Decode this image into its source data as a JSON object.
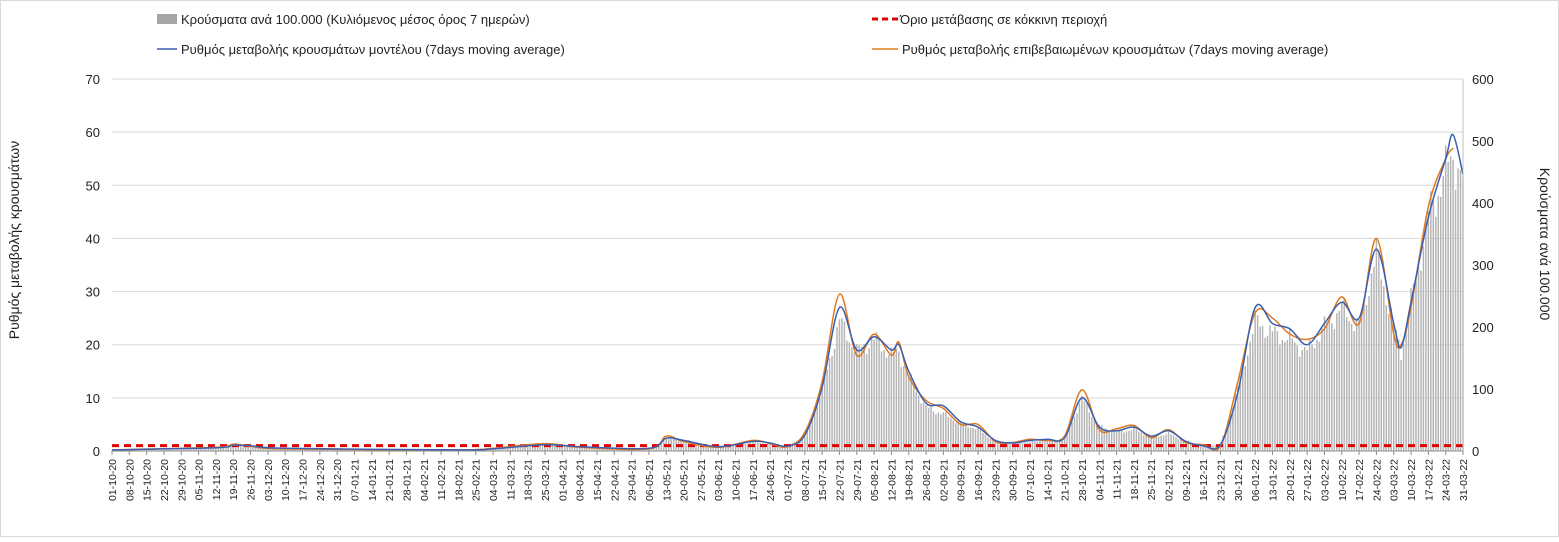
{
  "chart_data": {
    "type": "bar+line",
    "legend": {
      "items": [
        {
          "key": "bars",
          "label": "Κρούσματα ανά 100.000 (Κυλιόμενος μέσος όρος 7 ημερών)",
          "color": "#a6a6a6",
          "shape": "box"
        },
        {
          "key": "threshold",
          "label": "Όριο μετάβασης σε κόκκινη περιοχή",
          "color": "#e00000",
          "shape": "dash"
        },
        {
          "key": "model",
          "label": "Ρυθμός μεταβολής κρουσμάτων μοντέλου (7days moving average)",
          "color": "#3a5fb0",
          "shape": "line"
        },
        {
          "key": "confirmed",
          "label": "Ρυθμός μεταβολής επιβεβαιωμένων κρουσμάτων (7days moving average)",
          "color": "#e0791f",
          "shape": "line"
        }
      ]
    },
    "y_left": {
      "label": "Ρυθμός μεταβολής κρουσμάτων",
      "min": 0,
      "max": 70,
      "ticks": [
        0,
        10,
        20,
        30,
        40,
        50,
        60,
        70
      ]
    },
    "y_right": {
      "label": "Κρούσματα ανά 100.000",
      "min": 0,
      "max": 600,
      "ticks": [
        0,
        100,
        200,
        300,
        400,
        500,
        600
      ]
    },
    "x": {
      "start": "2020-10-01",
      "end": "2022-03-31",
      "tick_labels": [
        "01-10-20",
        "08-10-20",
        "15-10-20",
        "22-10-20",
        "29-10-20",
        "05-11-20",
        "12-11-20",
        "19-11-20",
        "26-11-20",
        "03-12-20",
        "10-12-20",
        "17-12-20",
        "24-12-20",
        "31-12-20",
        "07-01-21",
        "14-01-21",
        "21-01-21",
        "28-01-21",
        "04-02-21",
        "11-02-21",
        "18-02-21",
        "25-02-21",
        "04-03-21",
        "11-03-21",
        "18-03-21",
        "25-03-21",
        "01-04-21",
        "08-04-21",
        "15-04-21",
        "22-04-21",
        "29-04-21",
        "06-05-21",
        "13-05-21",
        "20-05-21",
        "27-05-21",
        "03-06-21",
        "10-06-21",
        "17-06-21",
        "24-06-21",
        "01-07-21",
        "08-07-21",
        "15-07-21",
        "22-07-21",
        "29-07-21",
        "05-08-21",
        "12-08-21",
        "19-08-21",
        "26-08-21",
        "02-09-21",
        "09-09-21",
        "16-09-21",
        "23-09-21",
        "30-09-21",
        "07-10-21",
        "14-10-21",
        "21-10-21",
        "28-10-21",
        "04-11-21",
        "11-11-21",
        "18-11-21",
        "25-11-21",
        "02-12-21",
        "09-12-21",
        "16-12-21",
        "23-12-21",
        "30-12-21",
        "06-01-22",
        "13-01-22",
        "20-01-22",
        "27-01-22",
        "03-02-22",
        "10-02-22",
        "17-02-22",
        "24-02-22",
        "03-03-22",
        "10-03-22",
        "17-03-22",
        "24-03-22",
        "31-03-22"
      ]
    },
    "threshold_value": 1,
    "series_keypoints": {
      "bars_per_100k": [
        [
          "2020-10-01",
          1
        ],
        [
          "2020-10-29",
          2
        ],
        [
          "2020-11-12",
          6
        ],
        [
          "2020-11-19",
          12
        ],
        [
          "2020-11-26",
          9
        ],
        [
          "2020-12-10",
          4
        ],
        [
          "2020-12-31",
          2
        ],
        [
          "2021-02-18",
          2
        ],
        [
          "2021-03-04",
          5
        ],
        [
          "2021-03-25",
          11
        ],
        [
          "2021-04-08",
          7
        ],
        [
          "2021-05-06",
          4
        ],
        [
          "2021-05-13",
          20
        ],
        [
          "2021-05-20",
          18
        ],
        [
          "2021-06-03",
          6
        ],
        [
          "2021-06-17",
          14
        ],
        [
          "2021-06-24",
          12
        ],
        [
          "2021-07-01",
          8
        ],
        [
          "2021-07-08",
          25
        ],
        [
          "2021-07-15",
          100
        ],
        [
          "2021-07-22",
          210
        ],
        [
          "2021-07-29",
          160
        ],
        [
          "2021-08-05",
          180
        ],
        [
          "2021-08-12",
          155
        ],
        [
          "2021-08-15",
          160
        ],
        [
          "2021-08-19",
          120
        ],
        [
          "2021-08-26",
          70
        ],
        [
          "2021-09-02",
          60
        ],
        [
          "2021-09-09",
          45
        ],
        [
          "2021-09-16",
          35
        ],
        [
          "2021-09-23",
          15
        ],
        [
          "2021-09-30",
          12
        ],
        [
          "2021-10-07",
          15
        ],
        [
          "2021-10-14",
          18
        ],
        [
          "2021-10-21",
          20
        ],
        [
          "2021-10-28",
          85
        ],
        [
          "2021-11-04",
          40
        ],
        [
          "2021-11-11",
          30
        ],
        [
          "2021-11-18",
          35
        ],
        [
          "2021-11-25",
          22
        ],
        [
          "2021-12-02",
          28
        ],
        [
          "2021-12-09",
          16
        ],
        [
          "2021-12-16",
          8
        ],
        [
          "2021-12-23",
          10
        ],
        [
          "2021-12-30",
          100
        ],
        [
          "2022-01-06",
          210
        ],
        [
          "2022-01-13",
          190
        ],
        [
          "2022-01-20",
          180
        ],
        [
          "2022-01-27",
          160
        ],
        [
          "2022-02-03",
          200
        ],
        [
          "2022-02-10",
          230
        ],
        [
          "2022-02-17",
          200
        ],
        [
          "2022-02-24",
          320
        ],
        [
          "2022-03-03",
          200
        ],
        [
          "2022-03-06",
          160
        ],
        [
          "2022-03-10",
          240
        ],
        [
          "2022-03-17",
          380
        ],
        [
          "2022-03-24",
          450
        ],
        [
          "2022-03-27",
          480
        ],
        [
          "2022-03-31",
          430
        ]
      ],
      "model_rate": [
        [
          "2020-10-01",
          0.2
        ],
        [
          "2020-11-12",
          0.6
        ],
        [
          "2020-11-19",
          1.1
        ],
        [
          "2020-11-26",
          1.0
        ],
        [
          "2020-12-10",
          0.5
        ],
        [
          "2021-02-18",
          0.2
        ],
        [
          "2021-03-04",
          0.4
        ],
        [
          "2021-03-25",
          1.2
        ],
        [
          "2021-04-08",
          0.8
        ],
        [
          "2021-05-06",
          0.5
        ],
        [
          "2021-05-13",
          2.4
        ],
        [
          "2021-05-20",
          2.0
        ],
        [
          "2021-06-03",
          0.8
        ],
        [
          "2021-06-17",
          1.8
        ],
        [
          "2021-06-24",
          1.5
        ],
        [
          "2021-07-01",
          0.9
        ],
        [
          "2021-07-08",
          3.0
        ],
        [
          "2021-07-15",
          12
        ],
        [
          "2021-07-22",
          27
        ],
        [
          "2021-07-29",
          19
        ],
        [
          "2021-08-05",
          21.5
        ],
        [
          "2021-08-12",
          19
        ],
        [
          "2021-08-15",
          20
        ],
        [
          "2021-08-19",
          15
        ],
        [
          "2021-08-26",
          9
        ],
        [
          "2021-09-02",
          8.5
        ],
        [
          "2021-09-09",
          5.5
        ],
        [
          "2021-09-16",
          4.5
        ],
        [
          "2021-09-23",
          2
        ],
        [
          "2021-09-30",
          1.5
        ],
        [
          "2021-10-07",
          2
        ],
        [
          "2021-10-14",
          2.2
        ],
        [
          "2021-10-21",
          2.5
        ],
        [
          "2021-10-28",
          10
        ],
        [
          "2021-11-04",
          4.5
        ],
        [
          "2021-11-11",
          3.8
        ],
        [
          "2021-11-18",
          4.5
        ],
        [
          "2021-11-25",
          2.8
        ],
        [
          "2021-12-02",
          3.8
        ],
        [
          "2021-12-09",
          1.8
        ],
        [
          "2021-12-16",
          1.0
        ],
        [
          "2021-12-23",
          1.2
        ],
        [
          "2021-12-30",
          11
        ],
        [
          "2022-01-06",
          27
        ],
        [
          "2022-01-13",
          24
        ],
        [
          "2022-01-20",
          23
        ],
        [
          "2022-01-27",
          20
        ],
        [
          "2022-02-03",
          24
        ],
        [
          "2022-02-10",
          28
        ],
        [
          "2022-02-17",
          25
        ],
        [
          "2022-02-24",
          38
        ],
        [
          "2022-03-03",
          24
        ],
        [
          "2022-03-06",
          19.5
        ],
        [
          "2022-03-10",
          28
        ],
        [
          "2022-03-17",
          44
        ],
        [
          "2022-03-24",
          55
        ],
        [
          "2022-03-27",
          59.5
        ],
        [
          "2022-03-31",
          52
        ]
      ],
      "confirmed_rate": [
        [
          "2020-10-01",
          0.2
        ],
        [
          "2020-11-12",
          0.7
        ],
        [
          "2020-11-19",
          1.3
        ],
        [
          "2020-11-26",
          0.9
        ],
        [
          "2020-12-10",
          0.4
        ],
        [
          "2021-02-18",
          0.2
        ],
        [
          "2021-03-04",
          0.5
        ],
        [
          "2021-03-25",
          1.4
        ],
        [
          "2021-04-08",
          0.7
        ],
        [
          "2021-05-06",
          0.4
        ],
        [
          "2021-05-13",
          2.8
        ],
        [
          "2021-05-20",
          1.8
        ],
        [
          "2021-06-03",
          0.7
        ],
        [
          "2021-06-17",
          2.0
        ],
        [
          "2021-06-24",
          1.4
        ],
        [
          "2021-07-01",
          0.8
        ],
        [
          "2021-07-08",
          3.5
        ],
        [
          "2021-07-15",
          13
        ],
        [
          "2021-07-22",
          29.5
        ],
        [
          "2021-07-29",
          18
        ],
        [
          "2021-08-05",
          22
        ],
        [
          "2021-08-12",
          18
        ],
        [
          "2021-08-15",
          20.5
        ],
        [
          "2021-08-19",
          14
        ],
        [
          "2021-08-26",
          9.5
        ],
        [
          "2021-09-02",
          8
        ],
        [
          "2021-09-09",
          5.0
        ],
        [
          "2021-09-16",
          5.0
        ],
        [
          "2021-09-23",
          1.8
        ],
        [
          "2021-09-30",
          1.6
        ],
        [
          "2021-10-07",
          2.2
        ],
        [
          "2021-10-14",
          2.0
        ],
        [
          "2021-10-21",
          2.8
        ],
        [
          "2021-10-28",
          11.5
        ],
        [
          "2021-11-04",
          4.0
        ],
        [
          "2021-11-11",
          4.2
        ],
        [
          "2021-11-18",
          4.8
        ],
        [
          "2021-11-25",
          2.5
        ],
        [
          "2021-12-02",
          4.0
        ],
        [
          "2021-12-09",
          1.6
        ],
        [
          "2021-12-16",
          1.2
        ],
        [
          "2021-12-23",
          1.0
        ],
        [
          "2021-12-30",
          13
        ],
        [
          "2022-01-06",
          26
        ],
        [
          "2022-01-13",
          25
        ],
        [
          "2022-01-20",
          22
        ],
        [
          "2022-01-27",
          21
        ],
        [
          "2022-02-03",
          23
        ],
        [
          "2022-02-10",
          29
        ],
        [
          "2022-02-17",
          24
        ],
        [
          "2022-02-24",
          40
        ],
        [
          "2022-03-03",
          22
        ],
        [
          "2022-03-06",
          20
        ],
        [
          "2022-03-10",
          27
        ],
        [
          "2022-03-17",
          46
        ],
        [
          "2022-03-24",
          55
        ],
        [
          "2022-03-27",
          57
        ]
      ]
    }
  }
}
